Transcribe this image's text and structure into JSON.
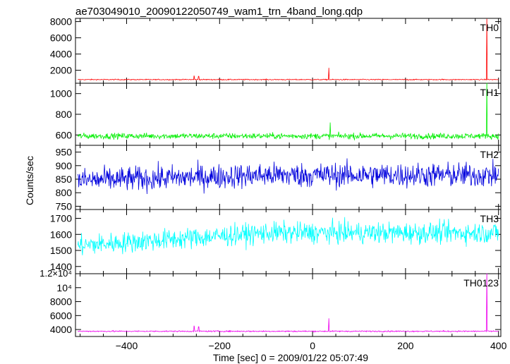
{
  "chart_data": {
    "type": "line",
    "title": "ae703049010_20090122050749_wam1_trn_4band_long.qdp",
    "xlabel": "Time [sec] 0 = 2009/01/22 05:07:49",
    "ylabel": "Counts/sec",
    "xlim": [
      -510,
      405
    ],
    "x_ticks": [
      "−400",
      "−200",
      "0",
      "200",
      "400"
    ],
    "x_tick_values": [
      -400,
      -200,
      0,
      200,
      400
    ],
    "panels": [
      {
        "name": "TH0",
        "color": "#ff0000",
        "ylim": [
          400,
          8400
        ],
        "y_ticks": [
          "2000",
          "4000",
          "6000",
          "8000"
        ],
        "y_tick_values": [
          2000,
          4000,
          6000,
          8000
        ],
        "baseline": 850,
        "noise": 60,
        "peaks": [
          [
            -255,
            1300
          ],
          [
            -245,
            1250
          ],
          [
            35,
            2300
          ],
          [
            375,
            8300
          ]
        ]
      },
      {
        "name": "TH1",
        "color": "#00ee00",
        "ylim": [
          500,
          1100
        ],
        "y_ticks": [
          "600",
          "800",
          "1000"
        ],
        "y_tick_values": [
          600,
          800,
          1000
        ],
        "baseline": 590,
        "noise": 28,
        "peaks": [
          [
            38,
            720
          ],
          [
            375,
            1100
          ]
        ]
      },
      {
        "name": "TH2",
        "color": "#0000dd",
        "ylim": [
          738,
          975
        ],
        "y_ticks": [
          "750",
          "800",
          "850",
          "900",
          "950"
        ],
        "y_tick_values": [
          750,
          800,
          850,
          900,
          950
        ],
        "baseline": 845,
        "trend": 20,
        "noise": 45,
        "peaks": []
      },
      {
        "name": "TH3",
        "color": "#00ffff",
        "ylim": [
          1355,
          1755
        ],
        "y_ticks": [
          "1400",
          "1500",
          "1600",
          "1700"
        ],
        "y_tick_values": [
          1400,
          1500,
          1600,
          1700
        ],
        "baseline": 1530,
        "trend": 80,
        "noise": 65,
        "peaks": []
      },
      {
        "name": "TH0123",
        "color": "#ee00ee",
        "ylim": [
          3000,
          12000
        ],
        "y_ticks": [
          "4000",
          "6000",
          "8000"
        ],
        "y_tick_values": [
          4000,
          6000,
          8000
        ],
        "y_top_label": "1.2×10⁴",
        "y_sup_label": "10⁴",
        "y_sup_value": 10000,
        "baseline": 3750,
        "noise": 90,
        "peaks": [
          [
            -255,
            4500
          ],
          [
            -245,
            4400
          ],
          [
            35,
            5600
          ],
          [
            375,
            12000
          ]
        ]
      }
    ]
  }
}
